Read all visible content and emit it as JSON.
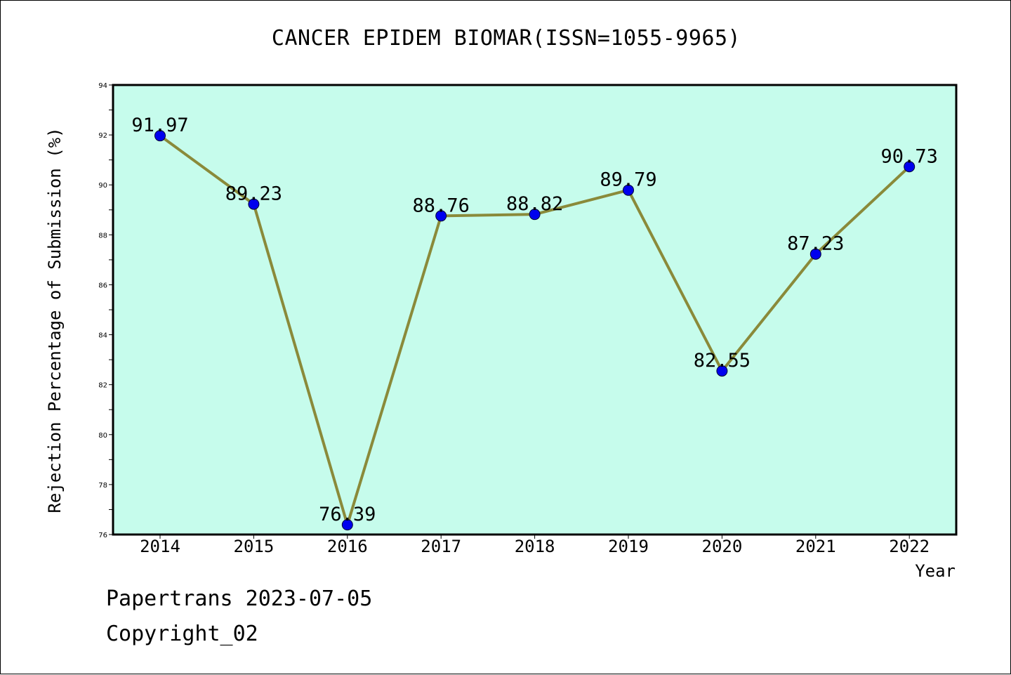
{
  "header": {
    "title": "CANCER EPIDEM BIOMAR(ISSN=1055-9965)"
  },
  "footer": {
    "date_line": "Papertrans 2023-07-05",
    "copyright_line": "Copyright_02"
  },
  "colors": {
    "plot_background": "#c6fcec",
    "line": "#8a8a3a",
    "marker": "#0000ee"
  },
  "chart_data": {
    "type": "line",
    "title": "CANCER EPIDEM BIOMAR(ISSN=1055-9965)",
    "xlabel": "Year",
    "ylabel": "Rejection Percentage of Submission (%)",
    "categories": [
      "2014",
      "2015",
      "2016",
      "2017",
      "2018",
      "2019",
      "2020",
      "2021",
      "2022"
    ],
    "series": [
      {
        "values": [
          91.97,
          89.23,
          76.39,
          88.76,
          88.82,
          89.79,
          82.55,
          87.23,
          90.73
        ],
        "labels": [
          "91.97",
          "89.23",
          "76.39",
          "88.76",
          "88.82",
          "89.79",
          "82.55",
          "87.23",
          "90.73"
        ]
      }
    ],
    "ylim": [
      76,
      94
    ],
    "yticks": [
      "76",
      "78",
      "80",
      "82",
      "84",
      "86",
      "88",
      "90",
      "92",
      "94"
    ],
    "grid": false,
    "legend": "none"
  }
}
